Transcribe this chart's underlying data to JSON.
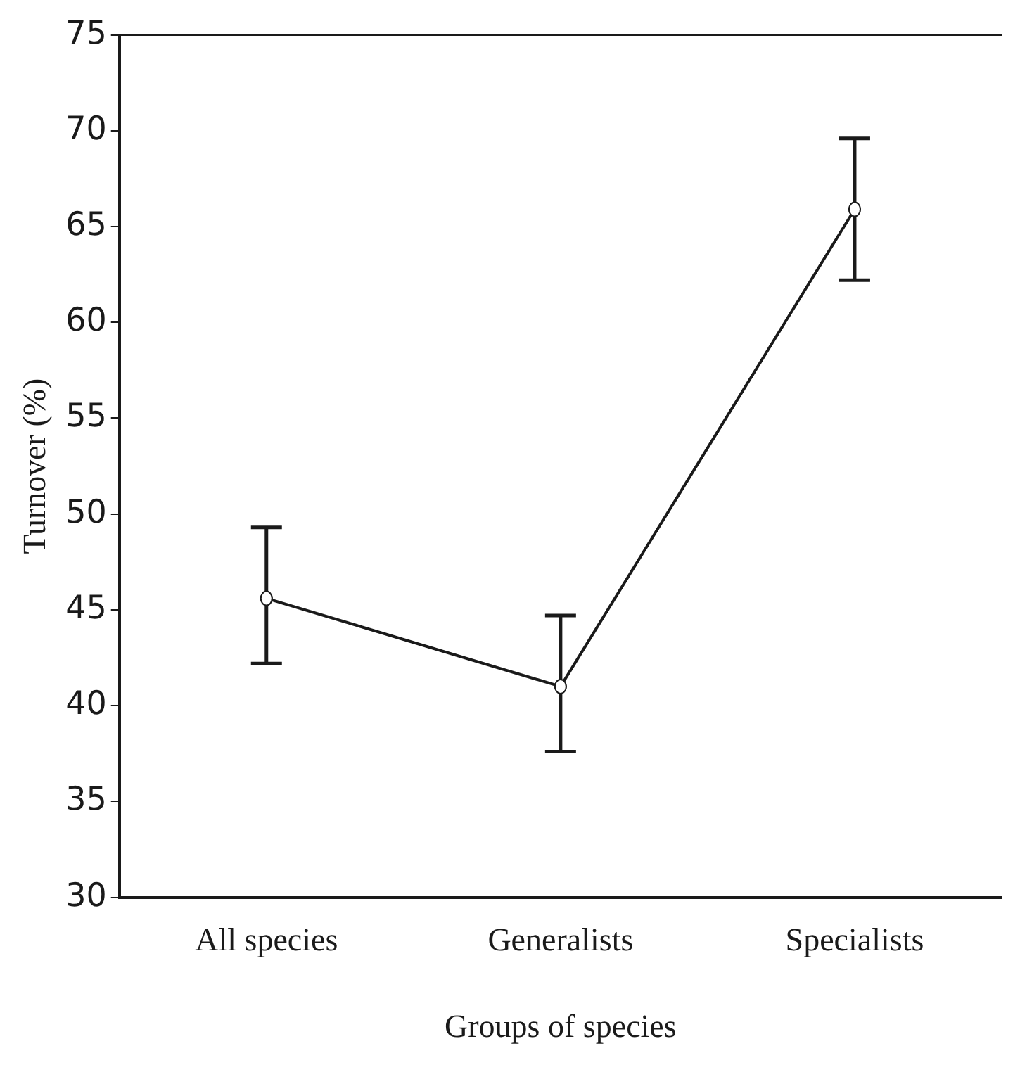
{
  "chart_data": {
    "type": "line",
    "xlabel": "Groups of species",
    "ylabel": "Turnover (%)",
    "categories": [
      "All species",
      "Generalists",
      "Specialists"
    ],
    "series": [
      {
        "color": "#1a1a1a",
        "values": [
          45.6,
          41.0,
          65.9
        ],
        "errors": [
          [
            42.2,
            49.3
          ],
          [
            37.6,
            44.7
          ],
          [
            62.2,
            69.6
          ]
        ]
      }
    ],
    "ylim": [
      30,
      75
    ],
    "yticks": [
      30,
      35,
      40,
      45,
      50,
      55,
      60,
      65,
      70,
      75
    ],
    "grid": false,
    "legend": false,
    "marker": "circle",
    "line_style": "solid"
  }
}
